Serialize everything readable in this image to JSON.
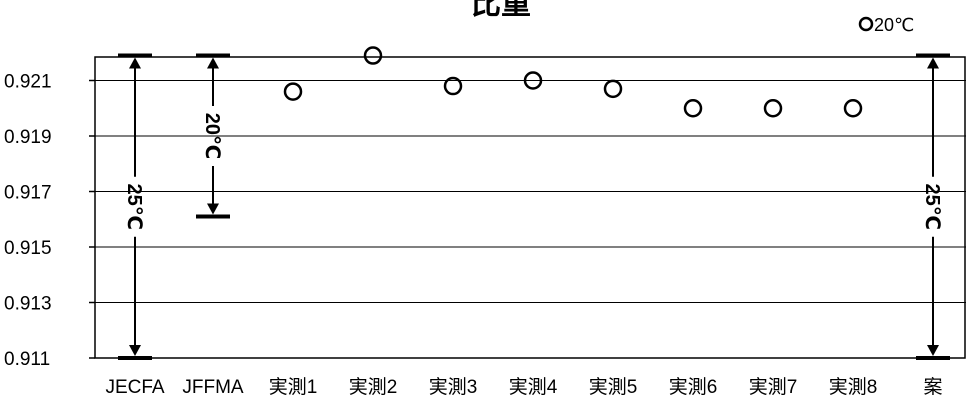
{
  "chart_data": {
    "type": "scatter",
    "title": "比重",
    "xlabel": "",
    "ylabel": "",
    "categories": [
      "JECFA",
      "JFFMA",
      "実測1",
      "実測2",
      "実測3",
      "実測4",
      "実測5",
      "実測6",
      "実測7",
      "実測8",
      "案"
    ],
    "series": [
      {
        "name": "20℃",
        "points": [
          {
            "category": "実測1",
            "value": 0.9206
          },
          {
            "category": "実測2",
            "value": 0.9219
          },
          {
            "category": "実測3",
            "value": 0.9208
          },
          {
            "category": "実測4",
            "value": 0.921
          },
          {
            "category": "実測5",
            "value": 0.9207
          },
          {
            "category": "実測6",
            "value": 0.92
          },
          {
            "category": "実測7",
            "value": 0.92
          },
          {
            "category": "実測8",
            "value": 0.92
          }
        ]
      }
    ],
    "ranges": [
      {
        "category": "JECFA",
        "label": "25℃",
        "min": 0.911,
        "max": 0.9219
      },
      {
        "category": "JFFMA",
        "label": "20℃",
        "min": 0.9161,
        "max": 0.9219
      },
      {
        "category": "案",
        "label": "25℃",
        "min": 0.911,
        "max": 0.9219
      }
    ],
    "yticks": [
      "0.911",
      "0.913",
      "0.915",
      "0.917",
      "0.919",
      "0.921"
    ],
    "ylim": [
      0.911,
      0.922
    ],
    "grid": true,
    "legend": {
      "position": "top-right",
      "label": "20℃"
    },
    "colors": {
      "marker_stroke": "#000000",
      "grid": "#000000",
      "axis": "#000000"
    }
  }
}
